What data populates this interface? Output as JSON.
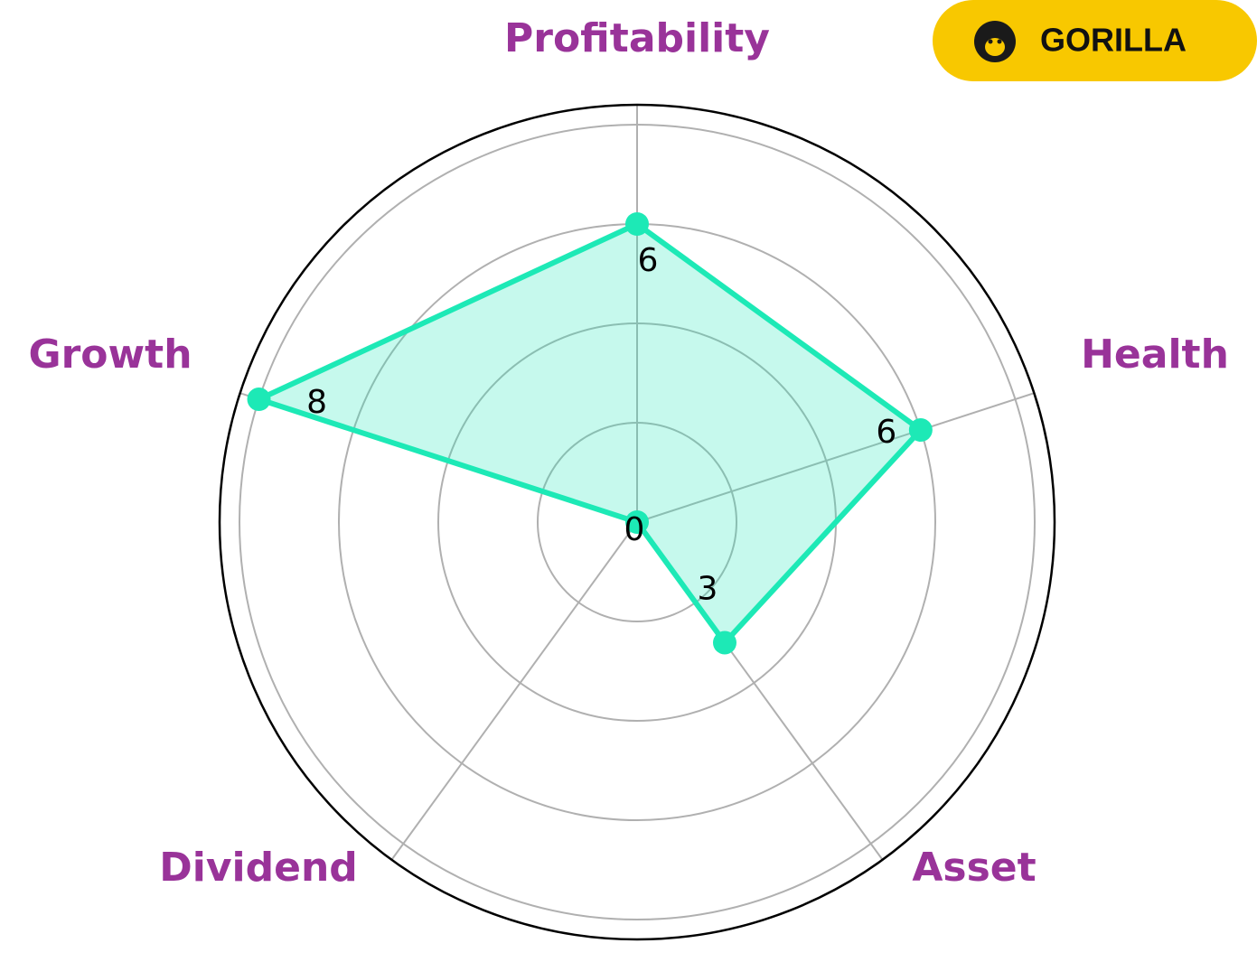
{
  "badge": {
    "text": "GORILLA"
  },
  "chart_data": {
    "type": "radar",
    "categories": [
      "Profitability",
      "Health",
      "Asset",
      "Dividend",
      "Growth"
    ],
    "values": [
      6,
      6,
      3,
      0,
      8
    ],
    "color": "#1de9b6",
    "label_color": "#993399",
    "rlim": [
      0,
      8.4
    ],
    "rticks": [
      2,
      4,
      6,
      8
    ],
    "grid": true
  }
}
